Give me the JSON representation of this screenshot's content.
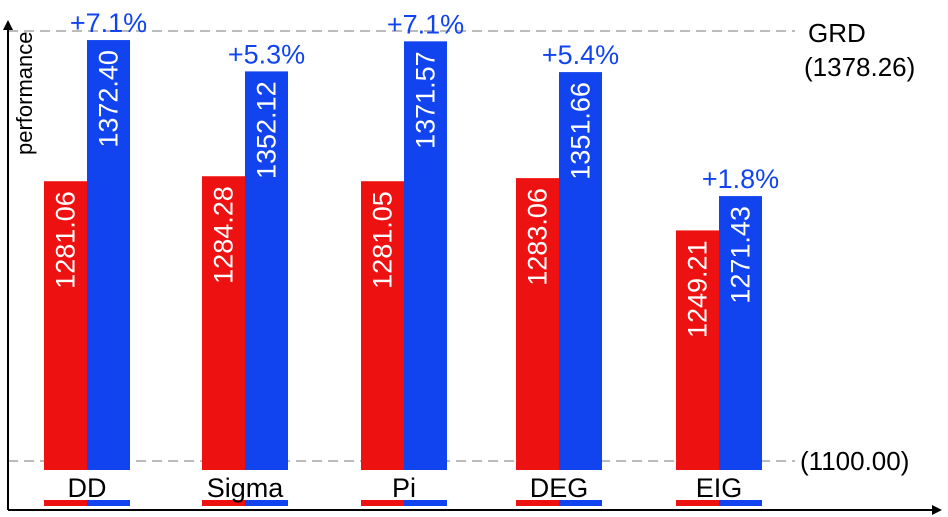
{
  "chart_data": {
    "type": "bar",
    "ylabel": "performance",
    "categories": [
      "DD",
      "Sigma",
      "Pi",
      "DEG",
      "EIG"
    ],
    "series": [
      {
        "values": [
          1281.06,
          1284.28,
          1281.05,
          1283.06,
          1249.21
        ],
        "color": "#ee1111"
      },
      {
        "values": [
          1372.4,
          1352.12,
          1371.57,
          1351.66,
          1271.43
        ],
        "color": "#1144ee"
      }
    ],
    "value_labels": [
      [
        "1281.06",
        "1284.28",
        "1281.05",
        "1283.06",
        "1249.21"
      ],
      [
        "1372.40",
        "1352.12",
        "1371.57",
        "1351.66",
        "1271.43"
      ]
    ],
    "gain_labels": [
      "+7.1%",
      "+5.3%",
      "+7.1%",
      "+5.4%",
      "+1.8%"
    ],
    "gain_color": "#1144ee",
    "ylim": [
      1100.0,
      1378.26
    ],
    "reference_lines": [
      {
        "value": 1378.26,
        "label": "GRD",
        "sublabel": "(1378.26)"
      },
      {
        "value": 1100.0,
        "label": "(1100.00)"
      }
    ],
    "grid": false,
    "legend": "none"
  }
}
